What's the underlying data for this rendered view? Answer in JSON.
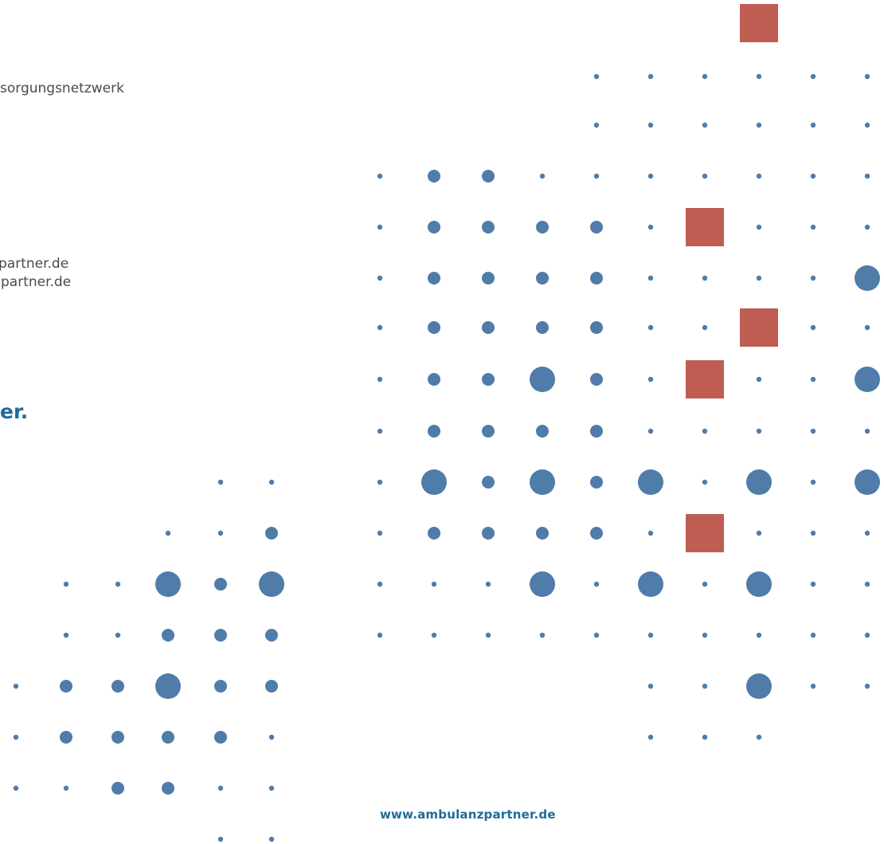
{
  "contact": {
    "network_line": "sorgungsnetzwerk",
    "email_1": "partner.de",
    "email_2": "partner.de"
  },
  "brand": {
    "tagline": "er.",
    "website": "www.ambulanzpartner.de"
  }
}
